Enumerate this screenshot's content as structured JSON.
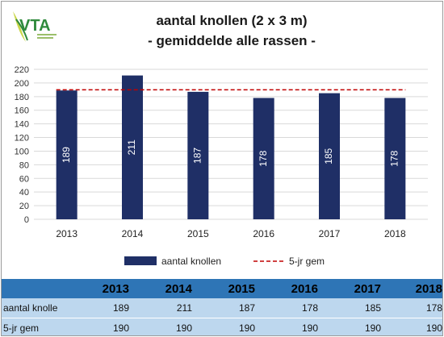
{
  "logo": {
    "text": "VTA",
    "icon": "leaf-logo-icon",
    "color": "#2f8a3c",
    "accent": "#c9d64a"
  },
  "chart_data": {
    "type": "bar",
    "title": "aantal knollen (2 x 3 m)",
    "subtitle": "- gemiddelde alle rassen -",
    "categories": [
      "2013",
      "2014",
      "2015",
      "2016",
      "2017",
      "2018"
    ],
    "series": [
      {
        "name": "aantal knollen",
        "type": "bar",
        "color": "#1f2f66",
        "values": [
          189,
          211,
          187,
          178,
          185,
          178
        ]
      },
      {
        "name": "5-jr gem",
        "type": "line",
        "style": "dashed",
        "color": "#c00000",
        "values": [
          190,
          190,
          190,
          190,
          190,
          190
        ]
      }
    ],
    "ylim": [
      0,
      220
    ],
    "yticks": [
      "0",
      "20",
      "40",
      "60",
      "80",
      "100",
      "120",
      "140",
      "160",
      "180",
      "200",
      "220"
    ],
    "ystep": 20,
    "grid": true,
    "data_labels": true,
    "legend": "bottom"
  },
  "table": {
    "header": [
      "",
      "2013",
      "2014",
      "2015",
      "2016",
      "2017",
      "2018"
    ],
    "rows": [
      {
        "label": "aantal knolle",
        "values": [
          "189",
          "211",
          "187",
          "178",
          "185",
          "178"
        ]
      },
      {
        "label": "5-jr gem",
        "values": [
          "190",
          "190",
          "190",
          "190",
          "190",
          "190"
        ]
      }
    ],
    "header_color": "#2e75b6",
    "row_color": "#bdd7ee"
  }
}
